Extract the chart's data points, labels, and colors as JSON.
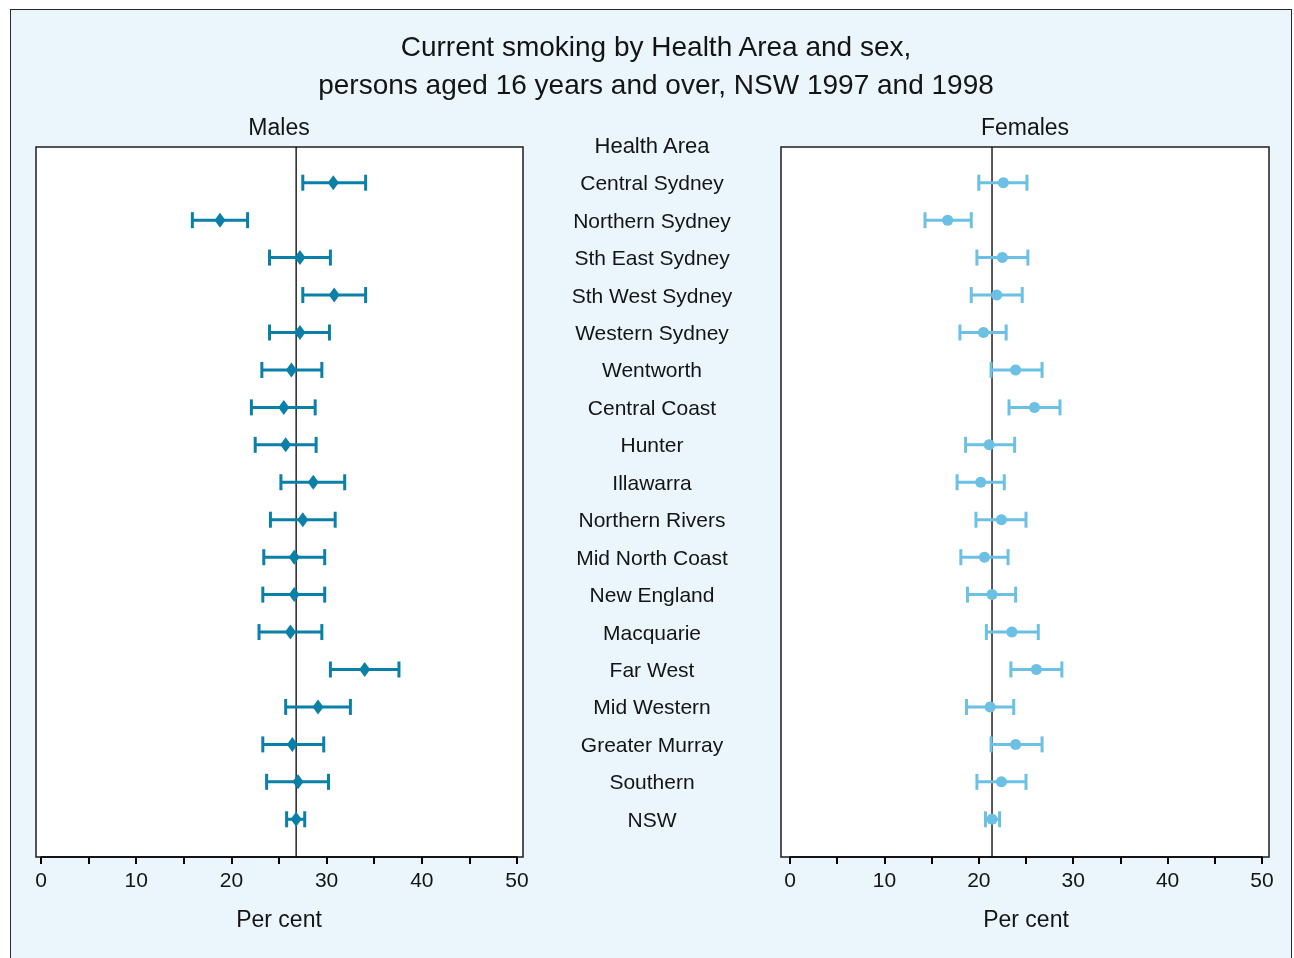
{
  "chart_data": [
    {
      "type": "scatter",
      "title": "Current smoking by Health Area and sex,\npersons aged 16 years and over, NSW 1997 and 1998",
      "subtitle": "Males",
      "xlabel": "Per cent",
      "ylabel": "Health Area",
      "orientation": "horizontal",
      "categories": [
        "Central Sydney",
        "Northern Sydney",
        "Sth East Sydney",
        "Sth West Sydney",
        "Western Sydney",
        "Wentworth",
        "Central Coast",
        "Hunter",
        "Illawarra",
        "Northern Rivers",
        "Mid North Coast",
        "New England",
        "Macquarie",
        "Far West",
        "Mid Western",
        "Greater Murray",
        "Southern",
        "NSW"
      ],
      "values": [
        30.7,
        18.8,
        27.2,
        30.8,
        27.2,
        26.3,
        25.5,
        25.7,
        28.6,
        27.5,
        26.6,
        26.6,
        26.2,
        34.0,
        29.1,
        26.4,
        27.0,
        26.8
      ],
      "errors": [
        [
          27.5,
          34.1
        ],
        [
          15.9,
          21.7
        ],
        [
          24.0,
          30.4
        ],
        [
          27.5,
          34.1
        ],
        [
          24.0,
          30.3
        ],
        [
          23.2,
          29.5
        ],
        [
          22.1,
          28.8
        ],
        [
          22.5,
          28.9
        ],
        [
          25.2,
          31.9
        ],
        [
          24.1,
          30.9
        ],
        [
          23.4,
          29.8
        ],
        [
          23.3,
          29.8
        ],
        [
          22.9,
          29.5
        ],
        [
          30.4,
          37.6
        ],
        [
          25.7,
          32.5
        ],
        [
          23.3,
          29.7
        ],
        [
          23.7,
          30.2
        ],
        [
          25.8,
          27.7
        ]
      ],
      "color": "#0a7fa8",
      "marker": "diamond",
      "xlim": [
        0,
        50
      ],
      "xticks": [
        0,
        {
          "value": 5,
          "label": null
        },
        10,
        {
          "value": 15,
          "label": null
        },
        20,
        {
          "value": 25,
          "label": null
        },
        30,
        {
          "value": 35,
          "label": null
        },
        40,
        {
          "value": 45,
          "label": null
        },
        50
      ],
      "ref_lines": [
        {
          "axis": "x",
          "value": 26.8
        }
      ]
    },
    {
      "type": "scatter",
      "subtitle": "Females",
      "xlabel": "Per cent",
      "orientation": "horizontal",
      "categories": [
        null,
        null,
        null,
        null,
        null,
        null,
        null,
        null,
        null,
        null,
        null,
        null,
        null,
        null,
        null,
        null,
        null,
        null
      ],
      "values": [
        22.6,
        16.7,
        22.5,
        21.9,
        20.5,
        23.9,
        25.9,
        21.1,
        20.2,
        22.4,
        20.6,
        21.4,
        23.5,
        26.1,
        21.2,
        23.9,
        22.4,
        21.4
      ],
      "errors": [
        [
          20.0,
          25.1
        ],
        [
          14.3,
          19.2
        ],
        [
          19.8,
          25.2
        ],
        [
          19.2,
          24.6
        ],
        [
          18.0,
          22.9
        ],
        [
          21.3,
          26.7
        ],
        [
          23.2,
          28.6
        ],
        [
          18.6,
          23.8
        ],
        [
          17.7,
          22.7
        ],
        [
          19.7,
          25.0
        ],
        [
          18.1,
          23.1
        ],
        [
          18.8,
          23.9
        ],
        [
          20.8,
          26.3
        ],
        [
          23.4,
          28.8
        ],
        [
          18.7,
          23.7
        ],
        [
          21.3,
          26.7
        ],
        [
          19.8,
          25.0
        ],
        [
          20.7,
          22.2
        ]
      ],
      "color": "#6cc0e4",
      "marker": "circle",
      "xlim": [
        0,
        50
      ],
      "xticks": [
        0,
        {
          "value": 5,
          "label": null
        },
        10,
        {
          "value": 15,
          "label": null
        },
        20,
        {
          "value": 25,
          "label": null
        },
        30,
        {
          "value": 35,
          "label": null
        },
        40,
        {
          "value": 45,
          "label": null
        },
        50
      ],
      "ref_lines": [
        {
          "axis": "x",
          "value": 21.4
        }
      ]
    }
  ]
}
